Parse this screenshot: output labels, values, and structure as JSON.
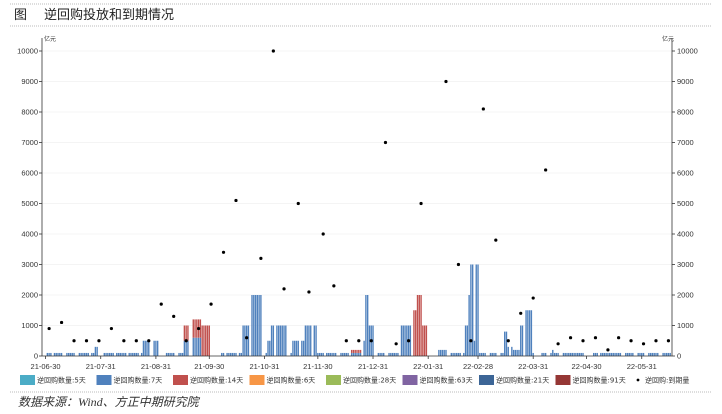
{
  "figure": {
    "title_prefix": "图",
    "title": "逆回购投放和到期情况",
    "source": "数据来源：Wind、方正中期研究院"
  },
  "chart_data": {
    "type": "bar",
    "title": "逆回购投放和到期情况",
    "x_unit": "days since 2021-06-30",
    "ylabel_left": "亿元",
    "ylabel_right": "亿元",
    "ylim": [
      0,
      10000
    ],
    "y_ticks": [
      0,
      1000,
      2000,
      3000,
      4000,
      5000,
      6000,
      7000,
      8000,
      9000,
      10000
    ],
    "y_tick_labels": [
      "0",
      "1000",
      "2000",
      "3000",
      "4000",
      "5000",
      "6000",
      "7000",
      "8000",
      "9000",
      "10000"
    ],
    "xlim": [
      -2,
      352
    ],
    "x_ticks": [
      {
        "label": "21-06-30",
        "day": 0
      },
      {
        "label": "21-07-31",
        "day": 31
      },
      {
        "label": "21-08-31",
        "day": 62
      },
      {
        "label": "21-09-30",
        "day": 92
      },
      {
        "label": "21-10-31",
        "day": 123
      },
      {
        "label": "21-11-30",
        "day": 153
      },
      {
        "label": "21-12-31",
        "day": 184
      },
      {
        "label": "22-01-31",
        "day": 215
      },
      {
        "label": "22-02-28",
        "day": 243
      },
      {
        "label": "22-03-31",
        "day": 274
      },
      {
        "label": "22-04-30",
        "day": 304
      },
      {
        "label": "22-05-31",
        "day": 335
      }
    ],
    "grid": true,
    "legend_position": "bottom",
    "legend": [
      {
        "key": "5",
        "label": "逆回购数量:5天",
        "color": "#4bacc6",
        "kind": "bar"
      },
      {
        "key": "7",
        "label": "逆回购数量:7天",
        "color": "#4f81bd",
        "kind": "bar"
      },
      {
        "key": "14",
        "label": "逆回购数量:14天",
        "color": "#c0504d",
        "kind": "bar"
      },
      {
        "key": "6",
        "label": "逆回购数量:6天",
        "color": "#f79646",
        "kind": "bar"
      },
      {
        "key": "28",
        "label": "逆回购数量:28天",
        "color": "#9bbb59",
        "kind": "bar"
      },
      {
        "key": "63",
        "label": "逆回购数量:63天",
        "color": "#8064a2",
        "kind": "bar"
      },
      {
        "key": "21",
        "label": "逆回购数量:21天",
        "color": "#3c6596",
        "kind": "bar"
      },
      {
        "key": "91",
        "label": "逆回购数量:91天",
        "color": "#953735",
        "kind": "bar"
      },
      {
        "key": "maturity",
        "label": "逆回购:到期量",
        "color": "#000000",
        "kind": "dot"
      }
    ],
    "bars_note": "each entry: [start_day, end_day, tenor_key, value]",
    "bars": [
      [
        1,
        3,
        "7",
        100
      ],
      [
        5,
        9,
        "7",
        100
      ],
      [
        12,
        16,
        "7",
        100
      ],
      [
        19,
        24,
        "7",
        100
      ],
      [
        26,
        27,
        "7",
        100
      ],
      [
        28,
        29,
        "7",
        300
      ],
      [
        33,
        38,
        "7",
        100
      ],
      [
        40,
        45,
        "7",
        100
      ],
      [
        47,
        52,
        "7",
        100
      ],
      [
        54,
        54,
        "7",
        100
      ],
      [
        55,
        58,
        "7",
        500
      ],
      [
        61,
        63,
        "7",
        500
      ],
      [
        68,
        72,
        "7",
        100
      ],
      [
        75,
        77,
        "7",
        100
      ],
      [
        78,
        80,
        "7",
        500
      ],
      [
        78,
        80,
        "14",
        500
      ],
      [
        83,
        87,
        "7",
        600
      ],
      [
        83,
        87,
        "14",
        600
      ],
      [
        88,
        92,
        "14",
        1000
      ],
      [
        99,
        100,
        "7",
        100
      ],
      [
        102,
        107,
        "7",
        100
      ],
      [
        109,
        110,
        "7",
        100
      ],
      [
        111,
        114,
        "7",
        1000
      ],
      [
        116,
        121,
        "7",
        2000
      ],
      [
        124,
        124,
        "7",
        100
      ],
      [
        125,
        126,
        "7",
        500
      ],
      [
        127,
        128,
        "7",
        1000
      ],
      [
        130,
        135,
        "7",
        1000
      ],
      [
        138,
        138,
        "7",
        100
      ],
      [
        139,
        142,
        "7",
        500
      ],
      [
        144,
        145,
        "7",
        500
      ],
      [
        146,
        149,
        "7",
        1000
      ],
      [
        151,
        152,
        "7",
        1000
      ],
      [
        153,
        156,
        "7",
        100
      ],
      [
        158,
        163,
        "7",
        100
      ],
      [
        166,
        170,
        "7",
        100
      ],
      [
        172,
        177,
        "7",
        100
      ],
      [
        172,
        177,
        "14",
        100
      ],
      [
        179,
        179,
        "7",
        500
      ],
      [
        180,
        181,
        "7",
        2000
      ],
      [
        182,
        184,
        "7",
        1000
      ],
      [
        187,
        190,
        "7",
        100
      ],
      [
        193,
        198,
        "7",
        100
      ],
      [
        200,
        205,
        "7",
        1000
      ],
      [
        207,
        208,
        "14",
        1500
      ],
      [
        209,
        211,
        "14",
        2000
      ],
      [
        212,
        214,
        "14",
        1000
      ],
      [
        221,
        225,
        "7",
        200
      ],
      [
        228,
        233,
        "7",
        100
      ],
      [
        235,
        235,
        "7",
        100
      ],
      [
        236,
        237,
        "7",
        1000
      ],
      [
        238,
        238,
        "7",
        2000
      ],
      [
        239,
        240,
        "7",
        3000
      ],
      [
        241,
        241,
        "7",
        500
      ],
      [
        242,
        243,
        "7",
        3000
      ],
      [
        244,
        247,
        "7",
        100
      ],
      [
        250,
        253,
        "7",
        100
      ],
      [
        256,
        257,
        "7",
        100
      ],
      [
        258,
        259,
        "7",
        800
      ],
      [
        260,
        260,
        "7",
        300
      ],
      [
        262,
        262,
        "7",
        300
      ],
      [
        263,
        266,
        "7",
        200
      ],
      [
        267,
        268,
        "7",
        1000
      ],
      [
        270,
        273,
        "7",
        1500
      ],
      [
        274,
        274,
        "7",
        100
      ],
      [
        279,
        281,
        "7",
        100
      ],
      [
        284,
        284,
        "7",
        100
      ],
      [
        285,
        285,
        "7",
        200
      ],
      [
        286,
        288,
        "7",
        100
      ],
      [
        291,
        296,
        "7",
        100
      ],
      [
        297,
        302,
        "7",
        100
      ],
      [
        308,
        310,
        "7",
        100
      ],
      [
        312,
        317,
        "7",
        100
      ],
      [
        318,
        323,
        "7",
        100
      ],
      [
        326,
        330,
        "7",
        100
      ],
      [
        333,
        336,
        "7",
        100
      ],
      [
        339,
        344,
        "7",
        100
      ],
      [
        347,
        351,
        "7",
        100
      ]
    ],
    "maturity_note": "each entry: [day, value]",
    "maturity": [
      [
        2,
        900
      ],
      [
        9,
        1100
      ],
      [
        16,
        500
      ],
      [
        23,
        500
      ],
      [
        30,
        500
      ],
      [
        37,
        900
      ],
      [
        44,
        500
      ],
      [
        51,
        500
      ],
      [
        58,
        500
      ],
      [
        65,
        1700
      ],
      [
        72,
        1300
      ],
      [
        79,
        500
      ],
      [
        86,
        900
      ],
      [
        93,
        1700
      ],
      [
        100,
        3400
      ],
      [
        107,
        5100
      ],
      [
        113,
        600
      ],
      [
        121,
        3200
      ],
      [
        128,
        10000
      ],
      [
        134,
        2200
      ],
      [
        142,
        5000
      ],
      [
        148,
        2100
      ],
      [
        156,
        4000
      ],
      [
        162,
        2300
      ],
      [
        169,
        500
      ],
      [
        176,
        500
      ],
      [
        183,
        500
      ],
      [
        191,
        7000
      ],
      [
        197,
        400
      ],
      [
        204,
        500
      ],
      [
        211,
        5000
      ],
      [
        225,
        9000
      ],
      [
        232,
        3000
      ],
      [
        239,
        500
      ],
      [
        246,
        8100
      ],
      [
        253,
        3800
      ],
      [
        260,
        500
      ],
      [
        267,
        1400
      ],
      [
        274,
        1900
      ],
      [
        281,
        6100
      ],
      [
        288,
        400
      ],
      [
        295,
        600
      ],
      [
        302,
        500
      ],
      [
        309,
        600
      ],
      [
        316,
        200
      ],
      [
        322,
        600
      ],
      [
        329,
        500
      ],
      [
        336,
        400
      ],
      [
        343,
        500
      ],
      [
        350,
        500
      ]
    ]
  }
}
